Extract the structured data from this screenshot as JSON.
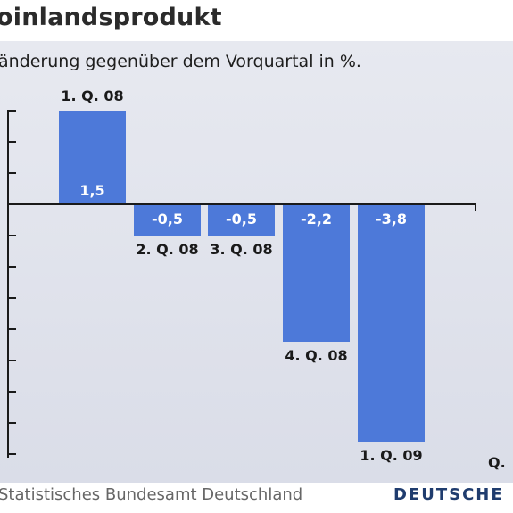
{
  "title": "oinlandsprodukt",
  "subtitle": "änderung gegenüber dem Vorquartal in %.",
  "source": "Statistisches Bundesamt Deutschland",
  "brand": "DEUTSCHE",
  "colors": {
    "bar": "#4d79d9",
    "axis": "#1a1a1a",
    "value_label": "#ffffff",
    "category_label": "#1a1a1a"
  },
  "chart_data": {
    "type": "bar",
    "categories": [
      "1. Q. 08",
      "2. Q. 08",
      "3. Q. 08",
      "4. Q. 08",
      "1. Q. 09"
    ],
    "values": [
      1.5,
      -0.5,
      -0.5,
      -2.2,
      -3.8
    ],
    "value_labels": [
      "1,5",
      "-0,5",
      "-0,5",
      "-2,2",
      "-3,8"
    ],
    "x_axis_end_label": "Q.",
    "ylim": [
      -4,
      1.5
    ],
    "ytick_step": 0.5,
    "grid": false
  }
}
